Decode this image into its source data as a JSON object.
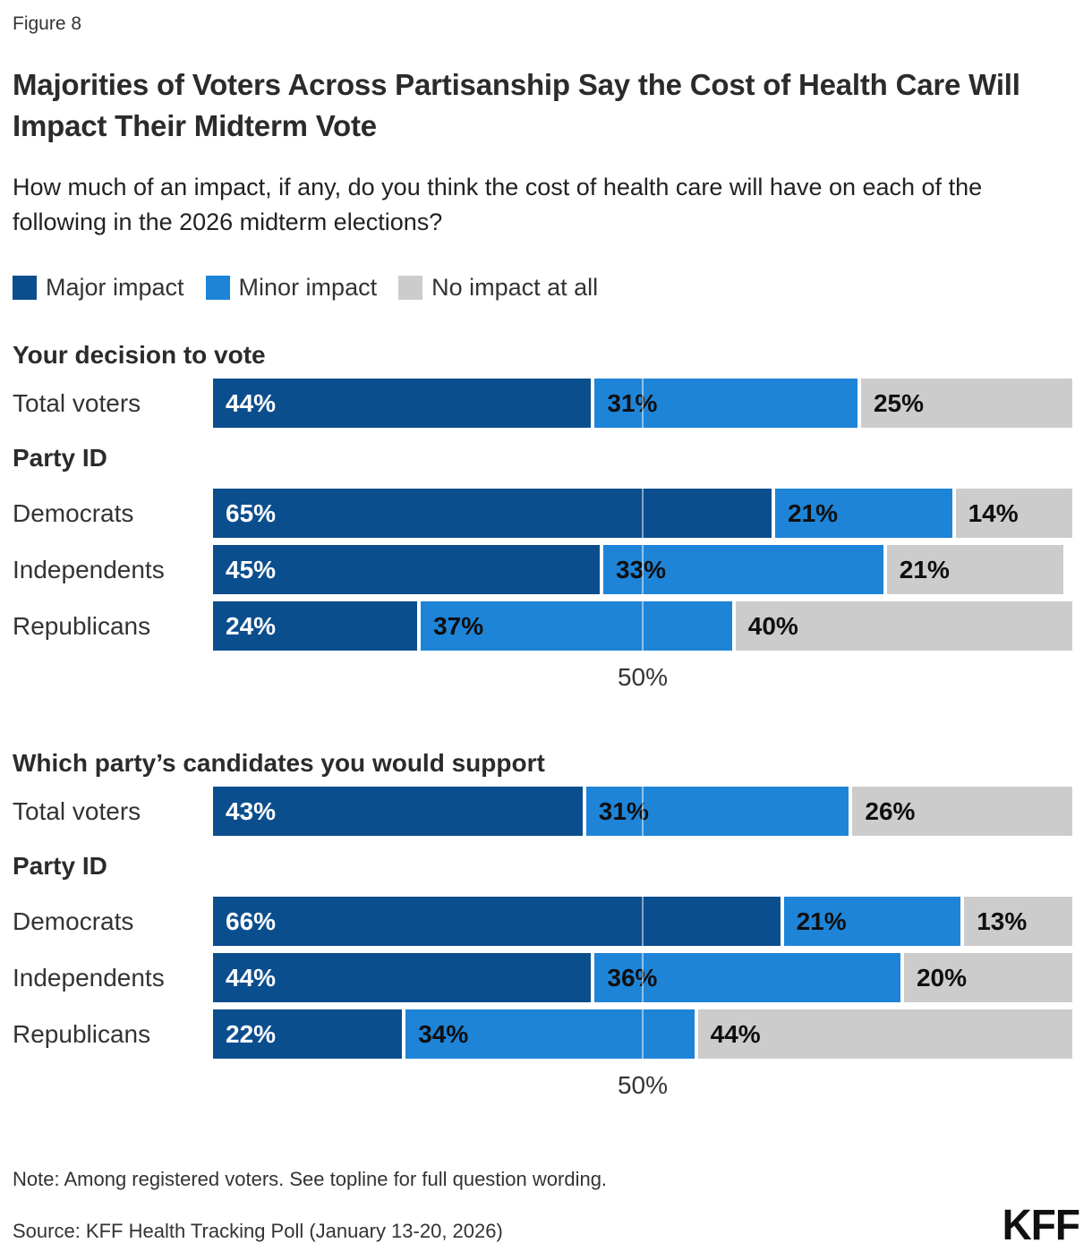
{
  "figure_label": "Figure 8",
  "title": "Majorities of Voters Across Partisanship Say the Cost of Health Care Will Impact Their Midterm Vote",
  "subtitle": "How much of an impact, if any, do you think the cost of health care will have on each of the following in the 2026 midterm elections?",
  "colors": {
    "major_impact": "#0B4E8E",
    "minor_impact": "#1E84D8",
    "no_impact": "#CCCCCC",
    "text_dark": "#333333",
    "label_on_dark": "#FFFFFF",
    "label_on_light": "#0F0F0F"
  },
  "legend": [
    {
      "label": "Major impact",
      "color": "#0B4E8E",
      "value_text_color": "#FFFFFF"
    },
    {
      "label": "Minor impact",
      "color": "#1E84D8",
      "value_text_color": "#0F0F0F"
    },
    {
      "label": "No impact at all",
      "color": "#CCCCCC",
      "value_text_color": "#0F0F0F"
    }
  ],
  "chart_data": [
    {
      "type": "bar",
      "stacked": true,
      "orientation": "horizontal",
      "title": "Your decision to vote",
      "group_label": "Party ID",
      "categories": [
        "Total voters",
        "Democrats",
        "Independents",
        "Republicans"
      ],
      "series": [
        {
          "name": "Major impact",
          "values": [
            44,
            65,
            45,
            24
          ]
        },
        {
          "name": "Minor impact",
          "values": [
            31,
            21,
            33,
            37
          ]
        },
        {
          "name": "No impact at all",
          "values": [
            25,
            14,
            21,
            40
          ]
        }
      ],
      "xlim": [
        0,
        100
      ],
      "axis": {
        "value": 50,
        "label": "50%"
      },
      "grid": "single-vertical-line-at-50"
    },
    {
      "type": "bar",
      "stacked": true,
      "orientation": "horizontal",
      "title": "Which party’s candidates you would support",
      "group_label": "Party ID",
      "categories": [
        "Total voters",
        "Democrats",
        "Independents",
        "Republicans"
      ],
      "series": [
        {
          "name": "Major impact",
          "values": [
            43,
            66,
            44,
            22
          ]
        },
        {
          "name": "Minor impact",
          "values": [
            31,
            21,
            36,
            34
          ]
        },
        {
          "name": "No impact at all",
          "values": [
            26,
            13,
            20,
            44
          ]
        }
      ],
      "xlim": [
        0,
        100
      ],
      "axis": {
        "value": 50,
        "label": "50%"
      },
      "grid": "single-vertical-line-at-50"
    }
  ],
  "footer": {
    "note": "Note: Among registered voters. See topline for full question wording.",
    "source": "Source: KFF Health Tracking Poll (January 13-20, 2026)",
    "logo": "KFF"
  }
}
